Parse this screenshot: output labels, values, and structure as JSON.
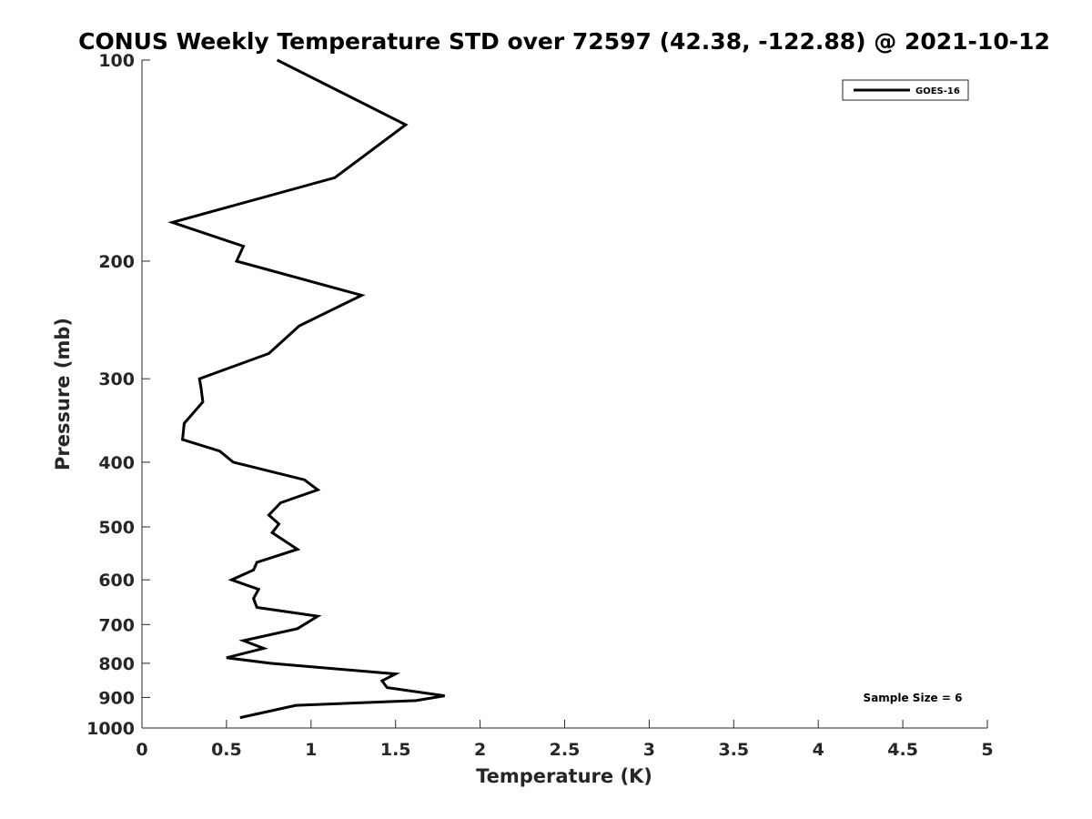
{
  "chart_data": {
    "type": "line",
    "title": "CONUS Weekly Temperature STD over 72597 (42.38, -122.88) @ 2021-10-12",
    "xlabel": "Temperature (K)",
    "ylabel": "Pressure (mb)",
    "xlim": [
      0,
      5
    ],
    "ylim": [
      100,
      1000
    ],
    "y_scale": "log",
    "y_reversed": true,
    "grid": false,
    "legend_position": "top-right",
    "x_ticks": [
      "0",
      "0.5",
      "1",
      "1.5",
      "2",
      "2.5",
      "3",
      "3.5",
      "4",
      "4.5",
      "5"
    ],
    "y_ticks": [
      "100",
      "200",
      "300",
      "400",
      "500",
      "600",
      "700",
      "800",
      "900",
      "1000"
    ],
    "series": [
      {
        "name": "GOES-16",
        "color": "#000000",
        "x": [
          0.8,
          1.56,
          1.14,
          0.18,
          0.6,
          0.56,
          1.3,
          0.93,
          0.75,
          0.34,
          0.35,
          0.36,
          0.25,
          0.24,
          0.46,
          0.54,
          0.96,
          1.04,
          0.82,
          0.75,
          0.81,
          0.77,
          0.92,
          0.68,
          0.66,
          0.53,
          0.69,
          0.66,
          0.68,
          1.04,
          0.92,
          0.6,
          0.72,
          0.5,
          0.76,
          1.5,
          1.42,
          1.45,
          1.79,
          1.62,
          0.91,
          0.58
        ],
        "y": [
          100,
          125,
          150,
          175,
          190,
          200,
          225,
          250,
          275,
          300,
          310,
          325,
          350,
          370,
          385,
          400,
          425,
          440,
          460,
          480,
          495,
          510,
          540,
          565,
          580,
          600,
          620,
          640,
          660,
          680,
          710,
          740,
          760,
          785,
          800,
          830,
          850,
          870,
          895,
          910,
          925,
          965
        ]
      }
    ],
    "annotations": [
      "Sample Size = 6"
    ]
  }
}
